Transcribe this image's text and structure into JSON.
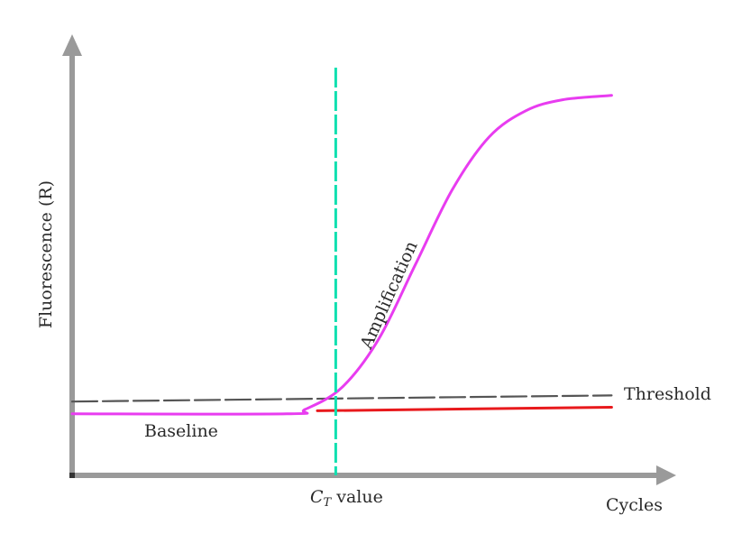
{
  "chart_data": {
    "type": "line",
    "xlabel": "Cycles",
    "ylabel": "Fluorescence (R)",
    "x_tick_label": "C",
    "x_tick_label_sub": "T",
    "x_tick_label_suffix": " value",
    "ct_cycle": 0.43,
    "annotations": {
      "baseline": "Baseline",
      "threshold": "Threshold",
      "amplification": "Amplification"
    },
    "series": [
      {
        "role": "amplification",
        "color": "#e83cf0",
        "points": [
          [
            0.0,
            0.14
          ],
          [
            0.35,
            0.14
          ],
          [
            0.38,
            0.15
          ],
          [
            0.44,
            0.2
          ],
          [
            0.5,
            0.31
          ],
          [
            0.56,
            0.48
          ],
          [
            0.62,
            0.65
          ],
          [
            0.68,
            0.77
          ],
          [
            0.74,
            0.83
          ],
          [
            0.8,
            0.855
          ],
          [
            0.88,
            0.865
          ]
        ]
      },
      {
        "role": "baseline-extrapolation",
        "color": "#e8191c",
        "points": [
          [
            0.4,
            0.147
          ],
          [
            0.88,
            0.155
          ]
        ]
      },
      {
        "role": "threshold",
        "color": "#555555",
        "dashed": true,
        "points": [
          [
            0.0,
            0.168
          ],
          [
            0.88,
            0.182
          ]
        ]
      }
    ],
    "ct_line_color": "#10e0b0",
    "axis_color": "#9a9a9a"
  }
}
